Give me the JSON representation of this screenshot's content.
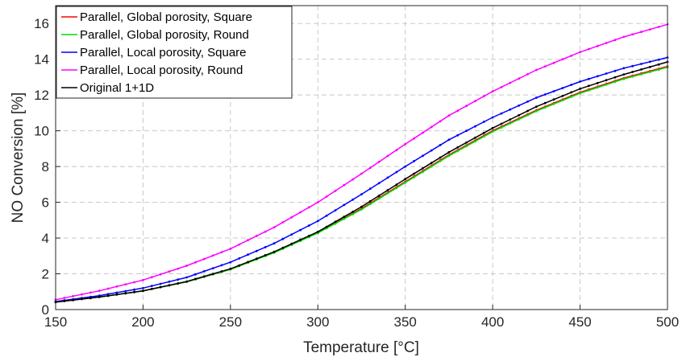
{
  "chart_data": {
    "type": "line",
    "title": "",
    "xlabel": "Temperature [°C]",
    "ylabel": "NO Conversion [%]",
    "xlim": [
      150,
      500
    ],
    "ylim": [
      0,
      17
    ],
    "xticks": [
      "150",
      "200",
      "250",
      "300",
      "350",
      "400",
      "450",
      "500"
    ],
    "yticks": [
      "0",
      "2",
      "4",
      "6",
      "8",
      "10",
      "12",
      "14",
      "16"
    ],
    "grid": true,
    "legend_position": "top-left",
    "markers": "dots",
    "x": [
      150,
      175,
      200,
      225,
      250,
      275,
      300,
      325,
      350,
      375,
      400,
      425,
      450,
      475,
      500
    ],
    "series": [
      {
        "name": "Parallel, Global porosity, Square",
        "color": "#ff0000",
        "values": [
          0.42,
          0.7,
          1.05,
          1.55,
          2.25,
          3.2,
          4.3,
          5.65,
          7.15,
          8.65,
          10.0,
          11.15,
          12.15,
          12.95,
          13.6
        ]
      },
      {
        "name": "Parallel, Global porosity, Round",
        "color": "#00dd00",
        "values": [
          0.42,
          0.7,
          1.05,
          1.55,
          2.25,
          3.18,
          4.28,
          5.6,
          7.1,
          8.6,
          9.95,
          11.1,
          12.1,
          12.9,
          13.55
        ]
      },
      {
        "name": "Parallel, Local porosity, Square",
        "color": "#0000ff",
        "values": [
          0.45,
          0.78,
          1.2,
          1.8,
          2.65,
          3.7,
          4.95,
          6.45,
          8.0,
          9.5,
          10.75,
          11.85,
          12.75,
          13.5,
          14.1
        ]
      },
      {
        "name": "Parallel, Local porosity, Round",
        "color": "#ff00ff",
        "values": [
          0.55,
          1.05,
          1.65,
          2.45,
          3.4,
          4.6,
          6.0,
          7.6,
          9.25,
          10.85,
          12.2,
          13.4,
          14.4,
          15.25,
          15.95
        ]
      },
      {
        "name": "Original 1+1D",
        "color": "#000000",
        "values": [
          0.42,
          0.7,
          1.05,
          1.57,
          2.28,
          3.23,
          4.35,
          5.75,
          7.3,
          8.8,
          10.15,
          11.35,
          12.35,
          13.15,
          13.85
        ]
      }
    ]
  }
}
